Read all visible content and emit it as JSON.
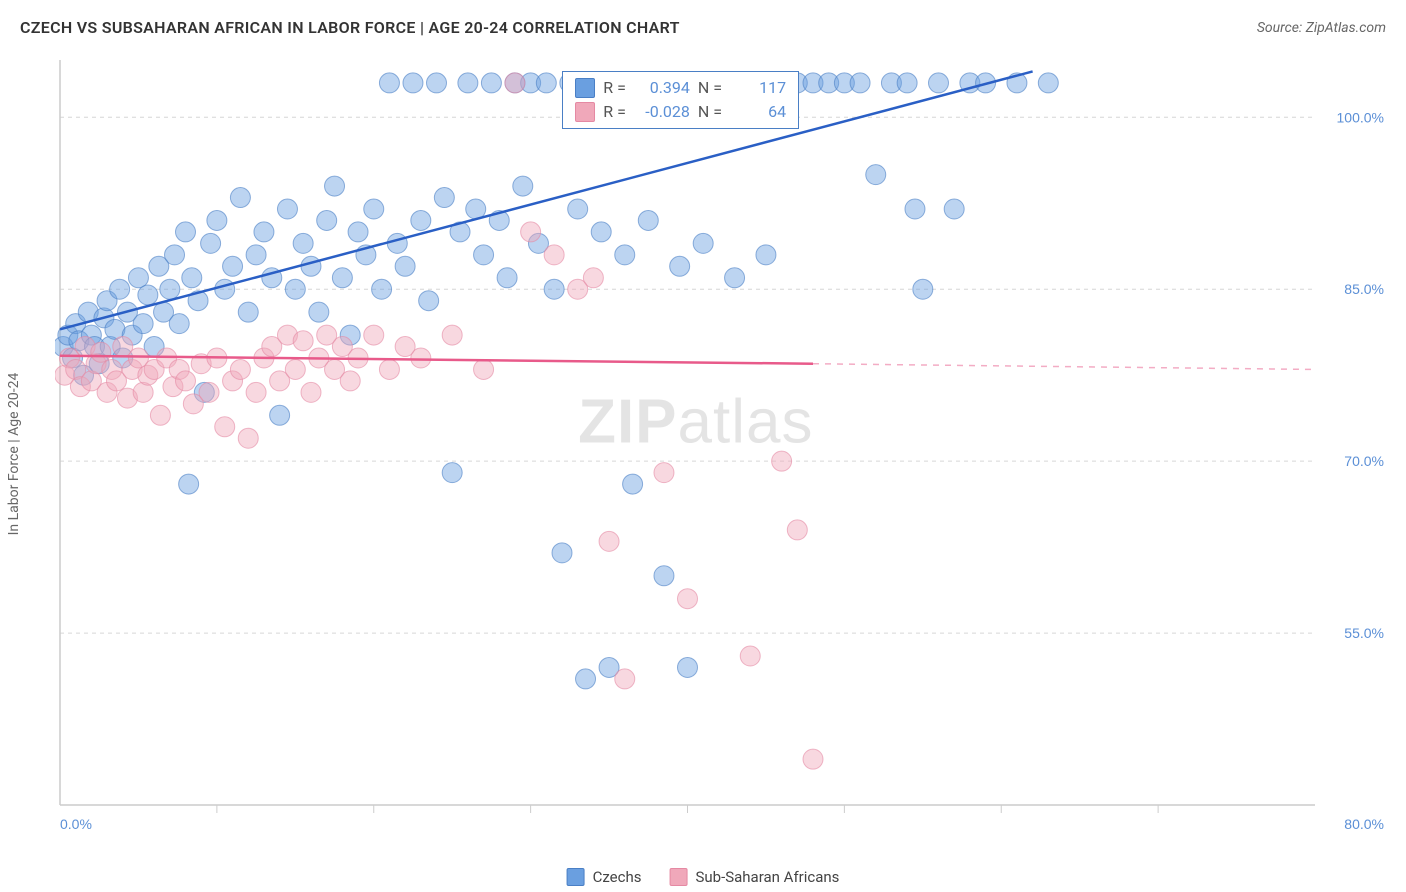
{
  "title": "CZECH VS SUBSAHARAN AFRICAN IN LABOR FORCE | AGE 20-24 CORRELATION CHART",
  "source": "Source: ZipAtlas.com",
  "watermark_bold": "ZIP",
  "watermark_light": "atlas",
  "ylabel": "In Labor Force | Age 20-24",
  "chart": {
    "type": "scatter",
    "xlim": [
      0,
      80
    ],
    "ylim": [
      40,
      105
    ],
    "y_ticks": [
      55.0,
      70.0,
      85.0,
      100.0
    ],
    "y_tick_labels": [
      "55.0%",
      "70.0%",
      "85.0%",
      "100.0%"
    ],
    "x_ticks_minor": [
      10,
      20,
      30,
      40,
      50,
      60,
      70
    ],
    "x_tick_labels": {
      "left": "0.0%",
      "right": "80.0%"
    },
    "background_color": "#ffffff",
    "grid_color": "#d6d6d6",
    "grid_dash": "4 4",
    "axis_color": "#cccccc",
    "tick_label_color": "#5b8fd6",
    "marker_radius": 10,
    "marker_opacity": 0.45,
    "series": {
      "czechs": {
        "label": "Czechs",
        "color": "#6a9fe0",
        "stroke": "#4a7fc5",
        "line_color": "#2a5fc5",
        "line_width": 2.5,
        "trend": {
          "x1": 0,
          "y1": 81.5,
          "x2": 62,
          "y2": 104
        },
        "R": "0.394",
        "N": "117",
        "points": [
          [
            0.2,
            80
          ],
          [
            0.5,
            81
          ],
          [
            0.8,
            79
          ],
          [
            1.0,
            82
          ],
          [
            1.2,
            80.5
          ],
          [
            1.5,
            77.5
          ],
          [
            1.8,
            83
          ],
          [
            2.0,
            81
          ],
          [
            2.2,
            80
          ],
          [
            2.5,
            78.5
          ],
          [
            2.8,
            82.5
          ],
          [
            3.0,
            84
          ],
          [
            3.2,
            80
          ],
          [
            3.5,
            81.5
          ],
          [
            3.8,
            85
          ],
          [
            4.0,
            79
          ],
          [
            4.3,
            83
          ],
          [
            4.6,
            81
          ],
          [
            5.0,
            86
          ],
          [
            5.3,
            82
          ],
          [
            5.6,
            84.5
          ],
          [
            6.0,
            80
          ],
          [
            6.3,
            87
          ],
          [
            6.6,
            83
          ],
          [
            7.0,
            85
          ],
          [
            7.3,
            88
          ],
          [
            7.6,
            82
          ],
          [
            8.0,
            90
          ],
          [
            8.4,
            86
          ],
          [
            8.8,
            84
          ],
          [
            9.2,
            76
          ],
          [
            9.6,
            89
          ],
          [
            10.0,
            91
          ],
          [
            10.5,
            85
          ],
          [
            11.0,
            87
          ],
          [
            11.5,
            93
          ],
          [
            12.0,
            83
          ],
          [
            12.5,
            88
          ],
          [
            13.0,
            90
          ],
          [
            13.5,
            86
          ],
          [
            14.0,
            74
          ],
          [
            14.5,
            92
          ],
          [
            15.0,
            85
          ],
          [
            15.5,
            89
          ],
          [
            16.0,
            87
          ],
          [
            16.5,
            83
          ],
          [
            17.0,
            91
          ],
          [
            17.5,
            94
          ],
          [
            18.0,
            86
          ],
          [
            18.5,
            81
          ],
          [
            19.0,
            90
          ],
          [
            19.5,
            88
          ],
          [
            20.0,
            92
          ],
          [
            20.5,
            85
          ],
          [
            21.0,
            103
          ],
          [
            21.5,
            89
          ],
          [
            22.0,
            87
          ],
          [
            22.5,
            103
          ],
          [
            23.0,
            91
          ],
          [
            23.5,
            84
          ],
          [
            24.0,
            103
          ],
          [
            24.5,
            93
          ],
          [
            25.0,
            69
          ],
          [
            25.5,
            90
          ],
          [
            26.0,
            103
          ],
          [
            26.5,
            92
          ],
          [
            27.0,
            88
          ],
          [
            27.5,
            103
          ],
          [
            28.0,
            91
          ],
          [
            28.5,
            86
          ],
          [
            29.0,
            103
          ],
          [
            29.5,
            94
          ],
          [
            30.0,
            103
          ],
          [
            30.5,
            89
          ],
          [
            31.0,
            103
          ],
          [
            31.5,
            85
          ],
          [
            32.0,
            62
          ],
          [
            32.5,
            103
          ],
          [
            33.0,
            92
          ],
          [
            33.5,
            51
          ],
          [
            34.0,
            103
          ],
          [
            34.5,
            90
          ],
          [
            35.0,
            52
          ],
          [
            35.5,
            103
          ],
          [
            36.0,
            88
          ],
          [
            36.5,
            68
          ],
          [
            37.0,
            103
          ],
          [
            37.5,
            91
          ],
          [
            38.0,
            103
          ],
          [
            38.5,
            60
          ],
          [
            39.0,
            103
          ],
          [
            39.5,
            87
          ],
          [
            40.0,
            52
          ],
          [
            40.5,
            103
          ],
          [
            41.0,
            89
          ],
          [
            42.0,
            103
          ],
          [
            43.0,
            86
          ],
          [
            44.0,
            103
          ],
          [
            45.0,
            88
          ],
          [
            46.0,
            103
          ],
          [
            47.0,
            103
          ],
          [
            48.0,
            103
          ],
          [
            49.0,
            103
          ],
          [
            50.0,
            103
          ],
          [
            51.0,
            103
          ],
          [
            52.0,
            95
          ],
          [
            53.0,
            103
          ],
          [
            54.0,
            103
          ],
          [
            55.0,
            85
          ],
          [
            56.0,
            103
          ],
          [
            57.0,
            92
          ],
          [
            58.0,
            103
          ],
          [
            59.0,
            103
          ],
          [
            61.0,
            103
          ],
          [
            63.0,
            103
          ],
          [
            54.5,
            92
          ],
          [
            8.2,
            68
          ]
        ]
      },
      "subsaharan": {
        "label": "Sub-Saharan Africans",
        "color": "#f0a8ba",
        "stroke": "#e589a3",
        "line_color": "#e85a8a",
        "line_width": 2.5,
        "trend_solid": {
          "x1": 0,
          "y1": 79.2,
          "x2": 48,
          "y2": 78.5
        },
        "trend_dashed": {
          "x1": 48,
          "y1": 78.5,
          "x2": 80,
          "y2": 78.0
        },
        "R": "-0.028",
        "N": "64",
        "points": [
          [
            0.3,
            77.5
          ],
          [
            0.6,
            79
          ],
          [
            1.0,
            78
          ],
          [
            1.3,
            76.5
          ],
          [
            1.6,
            80
          ],
          [
            2.0,
            77
          ],
          [
            2.3,
            78.5
          ],
          [
            2.6,
            79.5
          ],
          [
            3.0,
            76
          ],
          [
            3.3,
            78
          ],
          [
            3.6,
            77
          ],
          [
            4.0,
            80
          ],
          [
            4.3,
            75.5
          ],
          [
            4.6,
            78
          ],
          [
            5.0,
            79
          ],
          [
            5.3,
            76
          ],
          [
            5.6,
            77.5
          ],
          [
            6.0,
            78
          ],
          [
            6.4,
            74
          ],
          [
            6.8,
            79
          ],
          [
            7.2,
            76.5
          ],
          [
            7.6,
            78
          ],
          [
            8.0,
            77
          ],
          [
            8.5,
            75
          ],
          [
            9.0,
            78.5
          ],
          [
            9.5,
            76
          ],
          [
            10.0,
            79
          ],
          [
            10.5,
            73
          ],
          [
            11.0,
            77
          ],
          [
            11.5,
            78
          ],
          [
            12.0,
            72
          ],
          [
            12.5,
            76
          ],
          [
            13.0,
            79
          ],
          [
            13.5,
            80
          ],
          [
            14.0,
            77
          ],
          [
            14.5,
            81
          ],
          [
            15.0,
            78
          ],
          [
            15.5,
            80.5
          ],
          [
            16.0,
            76
          ],
          [
            16.5,
            79
          ],
          [
            17.0,
            81
          ],
          [
            17.5,
            78
          ],
          [
            18.0,
            80
          ],
          [
            18.5,
            77
          ],
          [
            19.0,
            79
          ],
          [
            20.0,
            81
          ],
          [
            21.0,
            78
          ],
          [
            22.0,
            80
          ],
          [
            23.0,
            79
          ],
          [
            25.0,
            81
          ],
          [
            27.0,
            78
          ],
          [
            29.0,
            103
          ],
          [
            30.0,
            90
          ],
          [
            31.5,
            88
          ],
          [
            33.0,
            85
          ],
          [
            34.0,
            86
          ],
          [
            35.0,
            63
          ],
          [
            36.0,
            51
          ],
          [
            38.5,
            69
          ],
          [
            40.0,
            58
          ],
          [
            44.0,
            53
          ],
          [
            46.0,
            70
          ],
          [
            47.0,
            64
          ],
          [
            48.0,
            44
          ]
        ]
      }
    }
  },
  "legend": {
    "stats_box": {
      "top_pct": 2,
      "left_pct": 38
    }
  }
}
